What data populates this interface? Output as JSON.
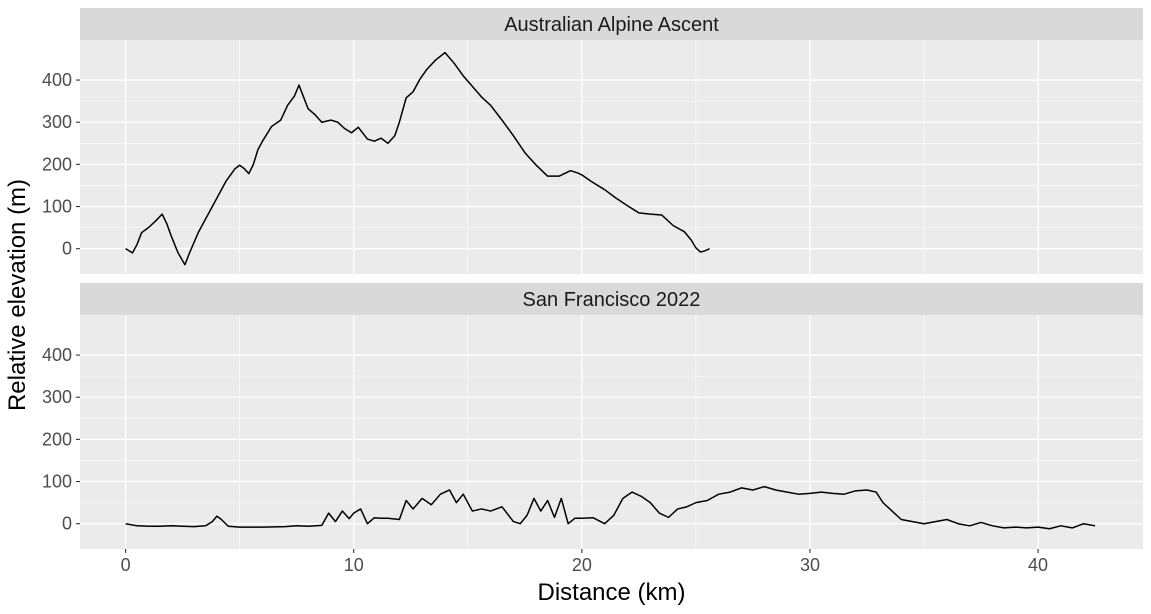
{
  "chart_data": {
    "type": "line",
    "xlabel": "Distance (km)",
    "ylabel": "Relative elevation (m)",
    "xlim": [
      -2,
      44.6
    ],
    "ylim": [
      -60,
      495
    ],
    "x_ticks": [
      0,
      10,
      20,
      30,
      40
    ],
    "y_ticks": [
      0,
      100,
      200,
      300,
      400
    ],
    "grid": true,
    "legend": "none",
    "colors": {
      "panel_bg": "#ebebeb",
      "strip_bg": "#d9d9d9",
      "grid": "#ffffff",
      "line": "#000000"
    },
    "panels": [
      {
        "name": "Australian Alpine Ascent",
        "x": [
          0,
          0.3,
          0.5,
          0.7,
          1.0,
          1.3,
          1.6,
          1.8,
          2.0,
          2.3,
          2.6,
          2.8,
          3.2,
          3.6,
          4.0,
          4.4,
          4.8,
          5.0,
          5.2,
          5.4,
          5.6,
          5.8,
          6.0,
          6.4,
          6.8,
          7.1,
          7.4,
          7.6,
          7.8,
          8.0,
          8.3,
          8.6,
          9.0,
          9.3,
          9.6,
          9.9,
          10.2,
          10.6,
          10.9,
          11.2,
          11.5,
          11.8,
          12.0,
          12.3,
          12.6,
          12.9,
          13.2,
          13.6,
          14.0,
          14.4,
          14.8,
          15.2,
          15.6,
          16.0,
          16.5,
          17.0,
          17.5,
          18.0,
          18.5,
          19.0,
          19.5,
          19.8,
          20.0,
          20.4,
          21.0,
          21.5,
          22.0,
          22.5,
          23.0,
          23.5,
          24.0,
          24.5,
          24.8,
          25.0,
          25.2,
          25.4,
          25.6
        ],
        "y": [
          0,
          -10,
          10,
          38,
          50,
          65,
          82,
          60,
          30,
          -10,
          -38,
          -10,
          40,
          80,
          120,
          160,
          190,
          198,
          190,
          178,
          200,
          235,
          255,
          290,
          305,
          340,
          362,
          388,
          360,
          332,
          318,
          300,
          305,
          300,
          285,
          275,
          288,
          260,
          255,
          262,
          250,
          268,
          300,
          358,
          372,
          402,
          425,
          448,
          465,
          440,
          410,
          385,
          360,
          340,
          305,
          268,
          228,
          198,
          172,
          172,
          185,
          180,
          175,
          160,
          140,
          120,
          102,
          85,
          82,
          80,
          55,
          40,
          20,
          2,
          -8,
          -5,
          0
        ]
      },
      {
        "name": "San Francisco 2022",
        "x": [
          0,
          0.5,
          1.0,
          1.5,
          2.0,
          2.5,
          3.0,
          3.5,
          3.8,
          4.0,
          4.2,
          4.5,
          5.0,
          6.0,
          7.0,
          7.5,
          8.0,
          8.6,
          8.9,
          9.2,
          9.5,
          9.8,
          10.0,
          10.3,
          10.6,
          10.9,
          11.2,
          11.5,
          12.0,
          12.3,
          12.6,
          13.0,
          13.4,
          13.8,
          14.2,
          14.5,
          14.8,
          15.2,
          15.6,
          16.0,
          16.5,
          17.0,
          17.3,
          17.6,
          17.9,
          18.2,
          18.5,
          18.8,
          19.1,
          19.4,
          19.7,
          20.0,
          20.5,
          21.0,
          21.4,
          21.8,
          22.2,
          22.6,
          23.0,
          23.4,
          23.8,
          24.2,
          24.6,
          25.0,
          25.5,
          26.0,
          26.5,
          27.0,
          27.5,
          28.0,
          28.5,
          29.0,
          29.5,
          30.0,
          30.5,
          31.0,
          31.5,
          32.0,
          32.5,
          32.9,
          33.2,
          33.6,
          34.0,
          34.5,
          35.0,
          35.5,
          36.0,
          36.5,
          37.0,
          37.5,
          38.0,
          38.5,
          39.0,
          39.5,
          40.0,
          40.5,
          41.0,
          41.5,
          42.0,
          42.5
        ],
        "y": [
          0,
          -5,
          -6,
          -6,
          -5,
          -6,
          -7,
          -5,
          5,
          18,
          10,
          -6,
          -8,
          -8,
          -7,
          -5,
          -6,
          -4,
          25,
          5,
          30,
          12,
          25,
          35,
          0,
          14,
          13,
          13,
          10,
          55,
          35,
          60,
          45,
          70,
          80,
          50,
          70,
          30,
          35,
          30,
          40,
          5,
          0,
          20,
          60,
          30,
          55,
          15,
          60,
          0,
          13,
          13,
          14,
          0,
          20,
          60,
          75,
          65,
          50,
          25,
          15,
          35,
          40,
          50,
          55,
          70,
          75,
          85,
          80,
          88,
          80,
          75,
          70,
          72,
          75,
          72,
          70,
          78,
          80,
          75,
          50,
          30,
          10,
          5,
          0,
          5,
          10,
          0,
          -5,
          3,
          -5,
          -10,
          -8,
          -10,
          -8,
          -12,
          -5,
          -10,
          0,
          -5
        ]
      }
    ]
  }
}
